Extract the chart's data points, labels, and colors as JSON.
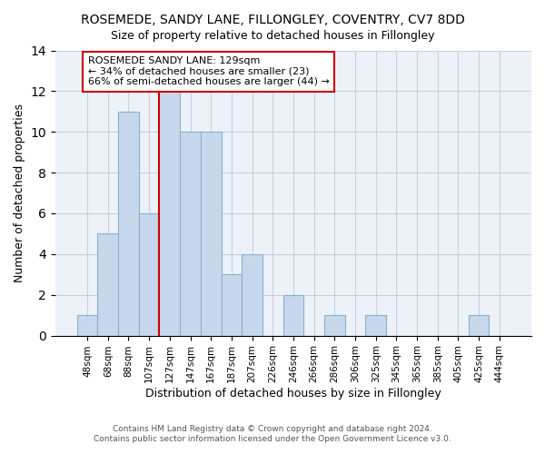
{
  "title": "ROSEMEDE, SANDY LANE, FILLONGLEY, COVENTRY, CV7 8DD",
  "subtitle": "Size of property relative to detached houses in Fillongley",
  "xlabel": "Distribution of detached houses by size in Fillongley",
  "ylabel": "Number of detached properties",
  "bar_labels": [
    "48sqm",
    "68sqm",
    "88sqm",
    "107sqm",
    "127sqm",
    "147sqm",
    "167sqm",
    "187sqm",
    "207sqm",
    "226sqm",
    "246sqm",
    "266sqm",
    "286sqm",
    "306sqm",
    "325sqm",
    "345sqm",
    "365sqm",
    "385sqm",
    "405sqm",
    "425sqm",
    "444sqm"
  ],
  "bar_values": [
    1,
    5,
    11,
    6,
    12,
    10,
    10,
    3,
    4,
    0,
    2,
    0,
    1,
    0,
    1,
    0,
    0,
    0,
    0,
    1,
    0
  ],
  "bar_color": "#c8d8ec",
  "bar_edge_color": "#8ab0cc",
  "vline_index": 4,
  "vline_color": "#cc0000",
  "annotation_text": "ROSEMEDE SANDY LANE: 129sqm\n← 34% of detached houses are smaller (23)\n66% of semi-detached houses are larger (44) →",
  "annotation_box_edge": "#cc0000",
  "ylim": [
    0,
    14
  ],
  "yticks": [
    0,
    2,
    4,
    6,
    8,
    10,
    12,
    14
  ],
  "footer_line1": "Contains HM Land Registry data © Crown copyright and database right 2024.",
  "footer_line2": "Contains public sector information licensed under the Open Government Licence v3.0.",
  "bg_color": "#ffffff",
  "plot_bg_color": "#edf2f8",
  "grid_color": "#c8d0dc"
}
